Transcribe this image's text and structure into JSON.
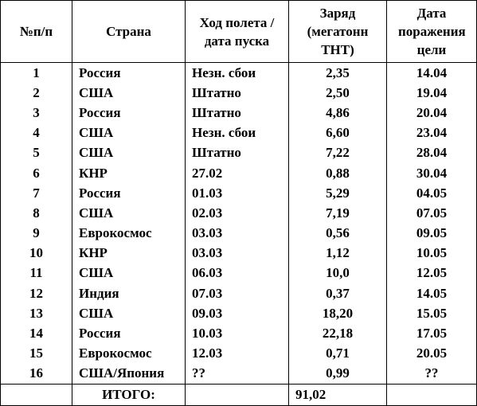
{
  "table": {
    "header": [
      "№п/п",
      "Страна",
      "Ход полета / дата пуска",
      "Заряд (мегатонн ТНТ)",
      "Дата поражения цели"
    ],
    "rows": [
      [
        "1",
        "Россия",
        "Незн. сбои",
        "2,35",
        "14.04"
      ],
      [
        "2",
        "США",
        "Штатно",
        "2,50",
        "19.04"
      ],
      [
        "3",
        "Россия",
        "Штатно",
        "4,86",
        "20.04"
      ],
      [
        "4",
        "США",
        "Незн. сбои",
        "6,60",
        "23.04"
      ],
      [
        "5",
        "США",
        "Штатно",
        "7,22",
        "28.04"
      ],
      [
        "6",
        "КНР",
        "27.02",
        "0,88",
        "30.04"
      ],
      [
        "7",
        "Россия",
        "01.03",
        "5,29",
        "04.05"
      ],
      [
        "8",
        "США",
        "02.03",
        "7,19",
        "07.05"
      ],
      [
        "9",
        "Еврокосмос",
        "03.03",
        "0,56",
        "09.05"
      ],
      [
        "10",
        "КНР",
        "03.03",
        "1,12",
        "10.05"
      ],
      [
        "11",
        "США",
        "06.03",
        "10,0",
        "12.05"
      ],
      [
        "12",
        "Индия",
        "07.03",
        "0,37",
        "14.05"
      ],
      [
        "13",
        "США",
        "09.03",
        "18,20",
        "15.05"
      ],
      [
        "14",
        "Россия",
        "10.03",
        "22,18",
        "17.05"
      ],
      [
        "15",
        "Еврокосмос",
        "12.03",
        "0,71",
        "20.05"
      ],
      [
        "16",
        "США/Япония",
        "??",
        "0,99",
        "??"
      ]
    ],
    "total": {
      "label": "ИТОГО:",
      "value": "91,02"
    }
  }
}
